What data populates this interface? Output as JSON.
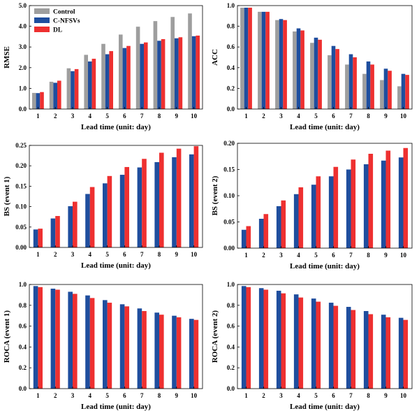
{
  "chart_data": [
    {
      "type": "bar",
      "xlabel": "Lead time (unit: day)",
      "ylabel": "RMSE",
      "categories": [
        "1",
        "2",
        "3",
        "4",
        "5",
        "6",
        "7",
        "8",
        "9",
        "10"
      ],
      "ylim": [
        0,
        5
      ],
      "yticks": [
        "0.0",
        "1.0",
        "2.0",
        "3.0",
        "4.0",
        "5.0"
      ],
      "series": [
        {
          "name": "Control",
          "color": "#9e9e9e",
          "values": [
            0.78,
            1.32,
            1.97,
            2.62,
            3.15,
            3.6,
            3.98,
            4.25,
            4.45,
            4.62
          ]
        },
        {
          "name": "C-NFSVs",
          "color": "#1f4e9e",
          "values": [
            0.77,
            1.27,
            1.83,
            2.3,
            2.65,
            2.95,
            3.15,
            3.3,
            3.42,
            3.52
          ]
        },
        {
          "name": "DL",
          "color": "#ee3030",
          "values": [
            0.82,
            1.37,
            1.93,
            2.43,
            2.8,
            3.05,
            3.22,
            3.38,
            3.47,
            3.55
          ]
        }
      ],
      "legend": "top-left"
    },
    {
      "type": "bar",
      "xlabel": "Lead time (unit: day)",
      "ylabel": "ACC",
      "categories": [
        "1",
        "2",
        "3",
        "4",
        "5",
        "6",
        "7",
        "8",
        "9",
        "10"
      ],
      "ylim": [
        0,
        1
      ],
      "yticks": [
        "0.0",
        "0.2",
        "0.4",
        "0.6",
        "0.8",
        "1.0"
      ],
      "series": [
        {
          "name": "Control",
          "color": "#9e9e9e",
          "values": [
            0.98,
            0.94,
            0.86,
            0.75,
            0.64,
            0.52,
            0.43,
            0.34,
            0.28,
            0.22
          ]
        },
        {
          "name": "C-NFSVs",
          "color": "#1f4e9e",
          "values": [
            0.98,
            0.94,
            0.87,
            0.78,
            0.69,
            0.61,
            0.53,
            0.46,
            0.39,
            0.34
          ]
        },
        {
          "name": "DL",
          "color": "#ee3030",
          "values": [
            0.98,
            0.94,
            0.86,
            0.76,
            0.67,
            0.58,
            0.5,
            0.43,
            0.37,
            0.33
          ]
        }
      ]
    },
    {
      "type": "bar",
      "xlabel": "Lead time (unit: day)",
      "ylabel": "BS (event 1)",
      "categories": [
        "1",
        "2",
        "3",
        "4",
        "5",
        "6",
        "7",
        "8",
        "9",
        "10"
      ],
      "ylim": [
        0,
        0.25
      ],
      "yticks": [
        "0.00",
        "0.05",
        "0.10",
        "0.15",
        "0.20",
        "0.25"
      ],
      "series": [
        {
          "name": "C-NFSVs",
          "color": "#1f4e9e",
          "values": [
            0.044,
            0.071,
            0.101,
            0.131,
            0.157,
            0.178,
            0.196,
            0.209,
            0.221,
            0.228
          ]
        },
        {
          "name": "DL",
          "color": "#ee3030",
          "values": [
            0.046,
            0.077,
            0.112,
            0.148,
            0.175,
            0.197,
            0.217,
            0.232,
            0.242,
            0.248
          ]
        }
      ]
    },
    {
      "type": "bar",
      "xlabel": "Lead time (unit: day)",
      "ylabel": "BS (event 2)",
      "categories": [
        "1",
        "2",
        "3",
        "4",
        "5",
        "6",
        "7",
        "8",
        "9",
        "10"
      ],
      "ylim": [
        0,
        0.2
      ],
      "yticks": [
        "0.00",
        "0.05",
        "0.10",
        "0.15",
        "0.20"
      ],
      "series": [
        {
          "name": "C-NFSVs",
          "color": "#1f4e9e",
          "values": [
            0.035,
            0.056,
            0.08,
            0.103,
            0.121,
            0.137,
            0.15,
            0.16,
            0.167,
            0.173
          ]
        },
        {
          "name": "DL",
          "color": "#ee3030",
          "values": [
            0.042,
            0.065,
            0.091,
            0.116,
            0.137,
            0.155,
            0.169,
            0.18,
            0.186,
            0.191
          ]
        }
      ]
    },
    {
      "type": "bar",
      "xlabel": "Lead time (unit: day)",
      "ylabel": "ROCA (event 1)",
      "categories": [
        "1",
        "2",
        "3",
        "4",
        "5",
        "6",
        "7",
        "8",
        "9",
        "10"
      ],
      "ylim": [
        0,
        1
      ],
      "yticks": [
        "0.0",
        "0.2",
        "0.4",
        "0.6",
        "0.8",
        "1.0"
      ],
      "series": [
        {
          "name": "C-NFSVs",
          "color": "#1f4e9e",
          "values": [
            0.985,
            0.96,
            0.93,
            0.895,
            0.85,
            0.81,
            0.77,
            0.73,
            0.7,
            0.67
          ]
        },
        {
          "name": "DL",
          "color": "#ee3030",
          "values": [
            0.975,
            0.95,
            0.91,
            0.87,
            0.825,
            0.79,
            0.745,
            0.71,
            0.685,
            0.66
          ]
        }
      ]
    },
    {
      "type": "bar",
      "xlabel": "Lead time (unit: day)",
      "ylabel": "ROCA (event 2)",
      "categories": [
        "1",
        "2",
        "3",
        "4",
        "5",
        "6",
        "7",
        "8",
        "9",
        "10"
      ],
      "ylim": [
        0,
        1
      ],
      "yticks": [
        "0.0",
        "0.2",
        "0.4",
        "0.6",
        "0.8",
        "1.0"
      ],
      "series": [
        {
          "name": "C-NFSVs",
          "color": "#1f4e9e",
          "values": [
            0.985,
            0.965,
            0.94,
            0.905,
            0.865,
            0.825,
            0.785,
            0.745,
            0.71,
            0.68
          ]
        },
        {
          "name": "DL",
          "color": "#ee3030",
          "values": [
            0.975,
            0.95,
            0.915,
            0.875,
            0.835,
            0.795,
            0.755,
            0.715,
            0.685,
            0.66
          ]
        }
      ]
    }
  ]
}
